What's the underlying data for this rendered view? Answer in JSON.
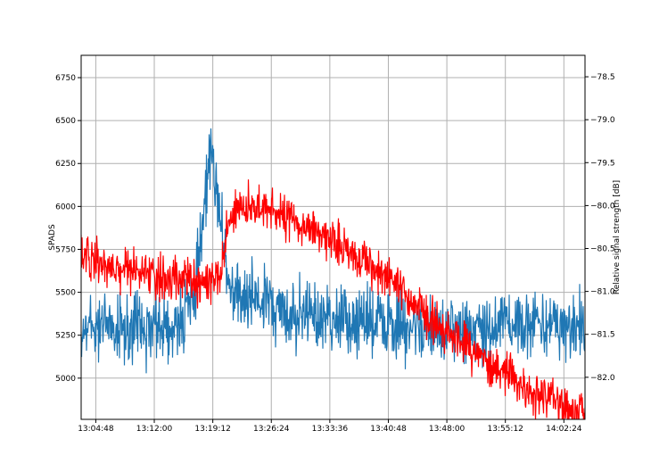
{
  "chart_data": {
    "type": "line",
    "xlabel": "",
    "ylabel_left": "SPADS",
    "ylabel_right": "Relative signal strength [dB]",
    "x_ticks": [
      "13:04:48",
      "13:12:00",
      "13:19:12",
      "13:26:24",
      "13:33:36",
      "13:40:48",
      "13:48:00",
      "13:55:12",
      "14:02:24"
    ],
    "x_range": [
      "13:03:00",
      "14:05:00"
    ],
    "y_left_ticks": [
      5000,
      5250,
      5500,
      5750,
      6000,
      6250,
      6500,
      6750
    ],
    "y_left_range": [
      4760,
      6880
    ],
    "y_right_ticks": [
      -82.0,
      -81.5,
      -81.0,
      -80.5,
      -80.0,
      -79.5,
      -79.0,
      -78.5
    ],
    "y_right_range": [
      -82.49,
      -78.25
    ],
    "grid": true,
    "series": [
      {
        "axis": "left",
        "color": "#1f77b4",
        "x": [
          "13:03:00",
          "13:06:00",
          "13:09:00",
          "13:12:00",
          "13:15:00",
          "13:17:00",
          "13:18:00",
          "13:18:40",
          "13:19:30",
          "13:20:00",
          "13:20:50",
          "13:21:30",
          "13:23:00",
          "13:26:24",
          "13:30:00",
          "13:33:36",
          "13:37:00",
          "13:40:48",
          "13:44:00",
          "13:48:00",
          "13:51:00",
          "13:55:12",
          "13:58:00",
          "14:02:24",
          "14:05:00"
        ],
        "values": [
          5290,
          5320,
          5280,
          5300,
          5330,
          5450,
          5900,
          6280,
          6200,
          6000,
          5650,
          5500,
          5470,
          5420,
          5360,
          5340,
          5330,
          5320,
          5300,
          5310,
          5300,
          5320,
          5310,
          5300,
          5300
        ]
      },
      {
        "axis": "right",
        "color": "#ff0000",
        "x": [
          "13:03:00",
          "13:06:00",
          "13:09:00",
          "13:12:00",
          "13:15:00",
          "13:18:00",
          "13:20:00",
          "13:21:00",
          "13:22:00",
          "13:24:00",
          "13:26:24",
          "13:30:00",
          "13:33:36",
          "13:37:00",
          "13:40:48",
          "13:44:00",
          "13:48:00",
          "13:51:00",
          "13:55:12",
          "13:58:00",
          "14:00:00",
          "14:03:00"
        ],
        "values": [
          -80.55,
          -80.7,
          -80.75,
          -80.85,
          -80.85,
          -80.9,
          -80.9,
          -80.3,
          -80.05,
          -80.0,
          -80.05,
          -80.2,
          -80.4,
          -80.6,
          -80.85,
          -81.15,
          -81.45,
          -81.7,
          -81.95,
          -82.15,
          -82.25,
          -82.4
        ]
      }
    ]
  }
}
